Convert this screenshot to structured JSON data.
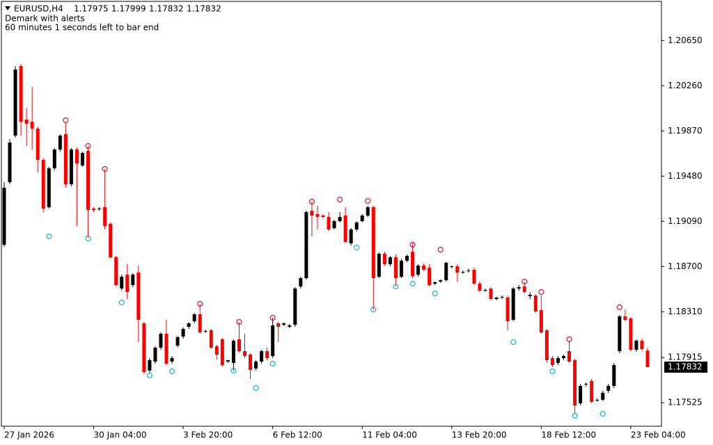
{
  "chart_data": {
    "type": "candlestick",
    "title": "EURUSD,H4",
    "indicator": "Demark with alerts",
    "timer": "60 minutes 1 seconds left to bar end",
    "up_color": "#000000",
    "down_color": "#ff0000",
    "open": [
      1.18888,
      1.19428,
      1.1983,
      1.2043,
      1.19968,
      1.1995,
      1.1989,
      1.1962,
      1.19212,
      1.19548,
      1.1971,
      1.19842,
      1.1941,
      1.1971,
      1.19572,
      1.19698,
      1.192,
      1.19194,
      1.19212,
      1.19068,
      1.1878,
      1.1851,
      1.1863,
      1.1854,
      1.18648,
      1.1821,
      1.17802,
      1.1788,
      1.18,
      1.1812,
      1.1788,
      1.18018,
      1.18096,
      1.1818,
      1.18228,
      1.18288,
      1.18138,
      1.1815,
      1.18012,
      1.18072,
      1.1788,
      1.17868,
      1.18072,
      1.1797,
      1.1794,
      1.1782,
      1.1788,
      1.1797,
      1.17928,
      1.1821,
      1.18198,
      1.1818,
      1.18198,
      1.18528,
      1.186,
      1.19182,
      1.19152,
      1.1914,
      1.19128,
      1.19032,
      1.19092,
      1.1914,
      1.189,
      1.1902,
      1.19092,
      1.1914,
      1.19212,
      1.18612,
      1.1881,
      1.1872,
      1.1878,
      1.18612,
      1.1875,
      1.18828,
      1.1863,
      1.18708,
      1.1869,
      1.18552,
      1.1857,
      1.18582,
      1.18696,
      1.18702,
      1.18648,
      1.1866,
      1.18672,
      1.18552,
      1.18492,
      1.1851,
      1.1842,
      1.18432,
      1.18432,
      1.1824,
      1.1851,
      1.18528,
      1.18444,
      1.1845,
      1.18324,
      1.1815,
      1.1791,
      1.17868,
      1.1791,
      1.1797,
      1.17892,
      1.1752,
      1.17682,
      1.17712,
      1.17544,
      1.1755,
      1.17628,
      1.1767,
      1.1797,
      1.1827,
      1.18252,
      1.17982,
      1.1806,
      1.17975
    ],
    "high": [
      1.19428,
      1.198,
      1.2043,
      1.20448,
      1.2007,
      1.2025,
      1.19908,
      1.19632,
      1.1956,
      1.19722,
      1.19842,
      1.1995,
      1.19722,
      1.19728,
      1.19692,
      1.1974,
      1.19212,
      1.19212,
      1.19542,
      1.1908,
      1.18792,
      1.1863,
      1.1872,
      1.18642,
      1.18708,
      1.18222,
      1.1791,
      1.18012,
      1.18132,
      1.1824,
      1.17928,
      1.18102,
      1.18174,
      1.18222,
      1.183,
      1.18378,
      1.18156,
      1.18162,
      1.18024,
      1.18084,
      1.17892,
      1.18072,
      1.18222,
      1.1812,
      1.17952,
      1.17892,
      1.17982,
      1.18,
      1.18258,
      1.18222,
      1.18216,
      1.18204,
      1.18522,
      1.18612,
      1.19182,
      1.1926,
      1.19224,
      1.19152,
      1.1917,
      1.19104,
      1.1917,
      1.19212,
      1.19032,
      1.19092,
      1.19152,
      1.19224,
      1.19224,
      1.18822,
      1.18828,
      1.18792,
      1.18804,
      1.18768,
      1.18804,
      1.189,
      1.1872,
      1.18726,
      1.1872,
      1.1857,
      1.18588,
      1.18744,
      1.18708,
      1.1872,
      1.18666,
      1.18684,
      1.1869,
      1.1857,
      1.1851,
      1.18522,
      1.18438,
      1.1845,
      1.1845,
      1.18522,
      1.1854,
      1.1857,
      1.1848,
      1.18462,
      1.1845,
      1.18162,
      1.17928,
      1.17928,
      1.1794,
      1.1806,
      1.17904,
      1.17688,
      1.177,
      1.1773,
      1.17562,
      1.17628,
      1.17688,
      1.17868,
      1.18282,
      1.1833,
      1.18264,
      1.18072,
      1.18078,
      1.17999
    ],
    "low": [
      1.1887,
      1.1941,
      1.19812,
      1.1983,
      1.1974,
      1.1971,
      1.19512,
      1.1917,
      1.192,
      1.1953,
      1.19692,
      1.1938,
      1.19392,
      1.1905,
      1.1956,
      1.18948,
      1.1917,
      1.19182,
      1.1902,
      1.18768,
      1.18528,
      1.18492,
      1.1842,
      1.18522,
      1.18048,
      1.17772,
      1.17784,
      1.17862,
      1.17982,
      1.1785,
      1.17862,
      1.18,
      1.18078,
      1.18162,
      1.1821,
      1.1812,
      1.18126,
      1.17988,
      1.17898,
      1.17838,
      1.17868,
      1.17802,
      1.17958,
      1.1791,
      1.1773,
      1.17802,
      1.17862,
      1.17892,
      1.1791,
      1.18048,
      1.18186,
      1.18168,
      1.1818,
      1.1851,
      1.18588,
      1.1896,
      1.1902,
      1.19116,
      1.19008,
      1.1902,
      1.1908,
      1.189,
      1.18882,
      1.19002,
      1.1908,
      1.19128,
      1.1833,
      1.186,
      1.18708,
      1.18702,
      1.18528,
      1.186,
      1.18738,
      1.186,
      1.18612,
      1.1866,
      1.18528,
      1.1854,
      1.18558,
      1.1857,
      1.18684,
      1.1857,
      1.18636,
      1.18648,
      1.1854,
      1.1848,
      1.1848,
      1.18408,
      1.18408,
      1.1842,
      1.1815,
      1.18228,
      1.18492,
      1.18468,
      1.1842,
      1.183,
      1.1812,
      1.17868,
      1.17832,
      1.1785,
      1.17892,
      1.17868,
      1.1743,
      1.17502,
      1.17664,
      1.1752,
      1.17532,
      1.17538,
      1.1761,
      1.17652,
      1.17952,
      1.18228,
      1.1797,
      1.17964,
      1.1797,
      1.17832
    ],
    "close": [
      1.1938,
      1.1977,
      1.204,
      1.1995,
      1.19932,
      1.1989,
      1.1962,
      1.192,
      1.19548,
      1.1971,
      1.1983,
      1.1941,
      1.1971,
      1.1959,
      1.1968,
      1.19188,
      1.19188,
      1.192,
      1.1905,
      1.1878,
      1.1854,
      1.18612,
      1.1848,
      1.1863,
      1.1824,
      1.1779,
      1.17892,
      1.18,
      1.1812,
      1.17862,
      1.1791,
      1.1809,
      1.18162,
      1.1821,
      1.18288,
      1.18132,
      1.18144,
      1.18,
      1.1794,
      1.1785,
      1.17892,
      1.1806,
      1.1797,
      1.17928,
      1.17808,
      1.1788,
      1.1797,
      1.1791,
      1.18192,
      1.1818,
      1.1821,
      1.18192,
      1.1851,
      1.186,
      1.1917,
      1.1914,
      1.19128,
      1.19128,
      1.1902,
      1.19092,
      1.19128,
      1.18912,
      1.1902,
      1.1908,
      1.1914,
      1.19212,
      1.186,
      1.1881,
      1.1872,
      1.1878,
      1.186,
      1.1875,
      1.18792,
      1.18618,
      1.18708,
      1.18672,
      1.1854,
      1.18564,
      1.18582,
      1.18732,
      1.18702,
      1.18648,
      1.18654,
      1.18666,
      1.18552,
      1.18492,
      1.18498,
      1.1842,
      1.18432,
      1.18438,
      1.18228,
      1.1851,
      1.18522,
      1.1848,
      1.18456,
      1.18312,
      1.18132,
      1.17892,
      1.1785,
      1.1791,
      1.17928,
      1.1788,
      1.17502,
      1.1767,
      1.17688,
      1.17532,
      1.1755,
      1.1761,
      1.1767,
      1.1785,
      1.1827,
      1.1824,
      1.17982,
      1.1806,
      1.17988,
      1.17832
    ],
    "top_signals": {
      "color": "#dc143c",
      "x": [
        11,
        15,
        18,
        35,
        42,
        48,
        55,
        60,
        65,
        73,
        78,
        93,
        96,
        101,
        110
      ],
      "values": [
        1.19962,
        1.1974,
        1.19542,
        1.18378,
        1.18222,
        1.18258,
        1.1926,
        1.19278,
        1.19266,
        1.18888,
        1.18846,
        1.1857,
        1.1848,
        1.18072,
        1.18348
      ]
    },
    "bottom_signals": {
      "color": "#1ab0e0",
      "x": [
        8,
        15,
        21,
        26,
        30,
        41,
        45,
        48,
        63,
        66,
        70,
        73,
        77,
        91,
        98,
        102,
        107
      ],
      "values": [
        1.1896,
        1.18942,
        1.1839,
        1.1776,
        1.17796,
        1.17802,
        1.17652,
        1.17862,
        1.18864,
        1.1833,
        1.18528,
        1.18552,
        1.18468,
        1.18048,
        1.17796,
        1.17412,
        1.1743
      ]
    },
    "xticks": [
      {
        "value": 0,
        "label": "27 Jan 2026"
      },
      {
        "value": 16,
        "label": "30 Jan 04:00"
      },
      {
        "value": 32,
        "label": "3 Feb 20:00"
      },
      {
        "value": 48,
        "label": "6 Feb 12:00"
      },
      {
        "value": 64,
        "label": "11 Feb 04:00"
      },
      {
        "value": 80,
        "label": "13 Feb 20:00"
      },
      {
        "value": 96,
        "label": "18 Feb 12:00"
      },
      {
        "value": 112,
        "label": "23 Feb 04:00"
      }
    ],
    "ylim": [
      1.17322,
      1.20988
    ],
    "yticks": [
      {
        "value": 1.2065,
        "label": "1.20650"
      },
      {
        "value": 1.2026,
        "label": "1.20260"
      },
      {
        "value": 1.1987,
        "label": "1.19870"
      },
      {
        "value": 1.1948,
        "label": "1.19480"
      },
      {
        "value": 1.1909,
        "label": "1.19090"
      },
      {
        "value": 1.187,
        "label": "1.18700"
      },
      {
        "value": 1.1831,
        "label": "1.18310"
      },
      1.17915,
      1.17525
    ]
  }
}
